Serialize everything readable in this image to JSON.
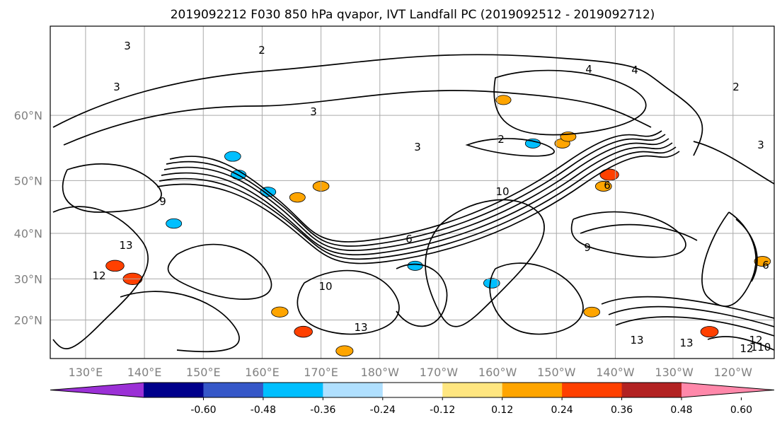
{
  "chart_data": {
    "type": "contour map",
    "title": "2019092212 F030 850 hPa qvapor, IVT Landfall PC (2019092512 - 2019092712)",
    "lat_labels": [
      "60°N",
      "50°N",
      "40°N",
      "30°N",
      "20°N"
    ],
    "lon_labels": [
      "130°E",
      "140°E",
      "150°E",
      "160°E",
      "170°E",
      "180°W",
      "170°W",
      "160°W",
      "150°W",
      "140°W",
      "130°W",
      "120°W"
    ],
    "lat_values": [
      60,
      50,
      40,
      30,
      20
    ],
    "lon_values": [
      130,
      140,
      150,
      160,
      170,
      180,
      190,
      200,
      210,
      220,
      230,
      240
    ],
    "extent": {
      "lon_min": 124,
      "lon_max": 247,
      "lat_min": 10,
      "lat_max": 70
    },
    "grid": true,
    "colorbar": {
      "orientation": "horizontal",
      "extend": "both",
      "ticks": [
        "-0.60",
        "-0.48",
        "-0.36",
        "-0.24",
        "-0.12",
        "0.12",
        "0.24",
        "0.36",
        "0.48",
        "0.60"
      ],
      "colors": [
        "#9b30d6",
        "#00008b",
        "#3557c8",
        "#00bfff",
        "#b0e0ff",
        "#ffffff",
        "#ffe680",
        "#ffa500",
        "#ff4000",
        "#b22222",
        "#ff88aa"
      ]
    },
    "filled_anomalies": [
      {
        "lon": 155,
        "lat": 54,
        "value": -0.3
      },
      {
        "lon": 156,
        "lat": 51,
        "value": -0.26
      },
      {
        "lon": 170,
        "lat": 49,
        "value": 0.3
      },
      {
        "lon": 166,
        "lat": 47,
        "value": 0.28
      },
      {
        "lon": 161,
        "lat": 48,
        "value": -0.28
      },
      {
        "lon": 145,
        "lat": 42,
        "value": -0.28
      },
      {
        "lon": 138,
        "lat": 30,
        "value": 0.42
      },
      {
        "lon": 135,
        "lat": 33,
        "value": 0.38
      },
      {
        "lon": 163,
        "lat": 22,
        "value": 0.32
      },
      {
        "lon": 167,
        "lat": 17,
        "value": 0.38
      },
      {
        "lon": 174,
        "lat": 12,
        "value": 0.34
      },
      {
        "lon": 219,
        "lat": 51,
        "value": 0.4
      },
      {
        "lon": 218,
        "lat": 49,
        "value": 0.3
      },
      {
        "lon": 211,
        "lat": 56,
        "value": 0.26
      },
      {
        "lon": 206,
        "lat": 56,
        "value": -0.26
      },
      {
        "lon": 212,
        "lat": 57,
        "value": 0.28
      },
      {
        "lon": 236,
        "lat": 17,
        "value": 0.36
      },
      {
        "lon": 245,
        "lat": 34,
        "value": 0.3
      },
      {
        "lon": 199,
        "lat": 29,
        "value": -0.3
      },
      {
        "lon": 216,
        "lat": 22,
        "value": 0.3
      },
      {
        "lon": 186,
        "lat": 33,
        "value": -0.26
      },
      {
        "lon": 201,
        "lat": 62,
        "value": 0.26
      }
    ],
    "contour_labels": [
      "3",
      "2",
      "3",
      "3",
      "3",
      "4",
      "4",
      "2",
      "2",
      "6",
      "9",
      "12",
      "13",
      "9",
      "10",
      "6",
      "3",
      "12",
      "13",
      "12",
      "110",
      "10",
      "13",
      "13",
      "6"
    ]
  }
}
